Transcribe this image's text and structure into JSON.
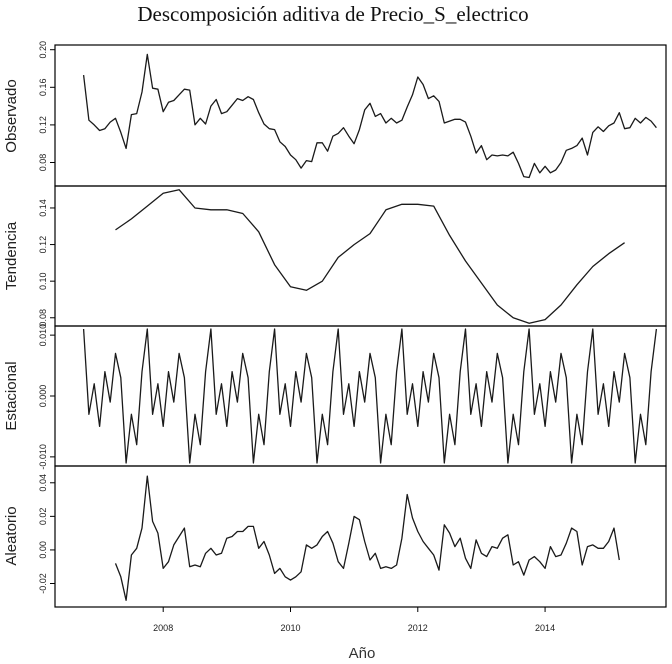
{
  "chart_data": {
    "type": "line",
    "title": "Descomposición aditiva de Precio_S_electrico",
    "xlabel": "Año",
    "x_ticks": [
      "2008",
      "2010",
      "2012",
      "2014"
    ],
    "x_tick_values": [
      2008,
      2010,
      2012,
      2014
    ],
    "xlim": [
      2006.3,
      2015.9
    ],
    "panels": [
      {
        "name": "Observado",
        "ylim": [
          0.055,
          0.205
        ],
        "y_ticks": [
          "0.08",
          "0.12",
          "0.16",
          "0.20"
        ],
        "y_tick_values": [
          0.08,
          0.12,
          0.16,
          0.2
        ],
        "series": {
          "x_start": 2006.75,
          "x_step": 0.08333,
          "values": [
            0.173,
            0.125,
            0.12,
            0.114,
            0.116,
            0.123,
            0.127,
            0.112,
            0.095,
            0.131,
            0.132,
            0.155,
            0.195,
            0.159,
            0.158,
            0.134,
            0.144,
            0.146,
            0.152,
            0.158,
            0.157,
            0.12,
            0.127,
            0.121,
            0.14,
            0.147,
            0.132,
            0.134,
            0.141,
            0.148,
            0.146,
            0.15,
            0.147,
            0.133,
            0.121,
            0.116,
            0.115,
            0.102,
            0.097,
            0.088,
            0.083,
            0.074,
            0.082,
            0.081,
            0.101,
            0.101,
            0.092,
            0.108,
            0.111,
            0.117,
            0.108,
            0.1,
            0.115,
            0.136,
            0.143,
            0.129,
            0.132,
            0.122,
            0.127,
            0.122,
            0.125,
            0.139,
            0.152,
            0.171,
            0.163,
            0.148,
            0.151,
            0.145,
            0.122,
            0.124,
            0.126,
            0.126,
            0.123,
            0.108,
            0.09,
            0.098,
            0.083,
            0.088,
            0.087,
            0.088,
            0.087,
            0.091,
            0.079,
            0.065,
            0.064,
            0.079,
            0.069,
            0.076,
            0.069,
            0.072,
            0.08,
            0.093,
            0.095,
            0.098,
            0.106,
            0.088,
            0.112,
            0.118,
            0.113,
            0.119,
            0.122,
            0.133,
            0.116,
            0.117,
            0.127,
            0.122,
            0.128,
            0.124,
            0.117
          ]
        }
      },
      {
        "name": "Tendencia",
        "ylim": [
          0.0755,
          0.152
        ],
        "y_ticks": [
          "0.08",
          "0.10",
          "0.12",
          "0.14"
        ],
        "y_tick_values": [
          0.08,
          0.1,
          0.12,
          0.14
        ],
        "series": {
          "x": [
            2007.25,
            2007.5,
            2007.75,
            2008.0,
            2008.25,
            2008.5,
            2008.75,
            2009.0,
            2009.25,
            2009.5,
            2009.75,
            2010.0,
            2010.25,
            2010.5,
            2010.75,
            2011.0,
            2011.25,
            2011.5,
            2011.75,
            2012.0,
            2012.25,
            2012.5,
            2012.75,
            2013.0,
            2013.25,
            2013.5,
            2013.75,
            2014.0,
            2014.25,
            2014.5,
            2014.75,
            2015.0,
            2015.25
          ],
          "values": [
            0.128,
            0.134,
            0.141,
            0.148,
            0.15,
            0.14,
            0.139,
            0.139,
            0.137,
            0.127,
            0.109,
            0.097,
            0.095,
            0.1,
            0.113,
            0.12,
            0.126,
            0.139,
            0.142,
            0.142,
            0.141,
            0.125,
            0.111,
            0.099,
            0.087,
            0.08,
            0.077,
            0.079,
            0.087,
            0.098,
            0.108,
            0.115,
            0.121
          ]
        }
      },
      {
        "name": "Estacional",
        "ylim": [
          -0.0115,
          0.0115
        ],
        "y_ticks": [
          "-0.010",
          "0.000",
          "0.010"
        ],
        "y_tick_values": [
          -0.01,
          0.0,
          0.01
        ],
        "series": {
          "x_start": 2006.75,
          "x_step": 0.08333,
          "pattern": [
            0.011,
            -0.003,
            0.002,
            -0.005,
            0.004,
            -0.001,
            0.007,
            0.003,
            -0.011,
            -0.003,
            -0.008,
            0.004
          ],
          "cycles": 9
        }
      },
      {
        "name": "Aleatorio",
        "ylim": [
          -0.034,
          0.05
        ],
        "y_ticks": [
          "-0.02",
          "0.00",
          "0.02",
          "0.04"
        ],
        "y_tick_values": [
          -0.02,
          0.0,
          0.02,
          0.04
        ],
        "series": {
          "x_start": 2007.25,
          "x_step": 0.08333,
          "values": [
            -0.008,
            -0.016,
            -0.03,
            -0.003,
            0.001,
            0.013,
            0.044,
            0.017,
            0.01,
            -0.011,
            -0.007,
            0.003,
            0.008,
            0.013,
            -0.01,
            -0.009,
            -0.01,
            -0.002,
            0.001,
            -0.003,
            -0.002,
            0.007,
            0.008,
            0.011,
            0.011,
            0.014,
            0.014,
            0.001,
            0.005,
            -0.003,
            -0.014,
            -0.011,
            -0.016,
            -0.018,
            -0.016,
            -0.013,
            0.003,
            0.001,
            0.003,
            0.008,
            0.011,
            0.004,
            -0.007,
            -0.011,
            0.004,
            0.02,
            0.018,
            0.005,
            -0.006,
            -0.002,
            -0.011,
            -0.01,
            -0.011,
            -0.009,
            0.007,
            0.033,
            0.019,
            0.011,
            0.005,
            0.001,
            -0.003,
            -0.012,
            0.015,
            0.01,
            0.002,
            0.007,
            -0.005,
            -0.011,
            0.006,
            -0.002,
            -0.004,
            0.002,
            0.001,
            0.007,
            0.009,
            -0.009,
            -0.007,
            -0.015,
            -0.006,
            -0.004,
            -0.007,
            -0.011,
            0.002,
            -0.004,
            -0.003,
            0.004,
            0.013,
            0.011,
            -0.009,
            0.002,
            0.003,
            0.001,
            0.001,
            0.005,
            0.013,
            -0.006
          ]
        }
      }
    ]
  }
}
